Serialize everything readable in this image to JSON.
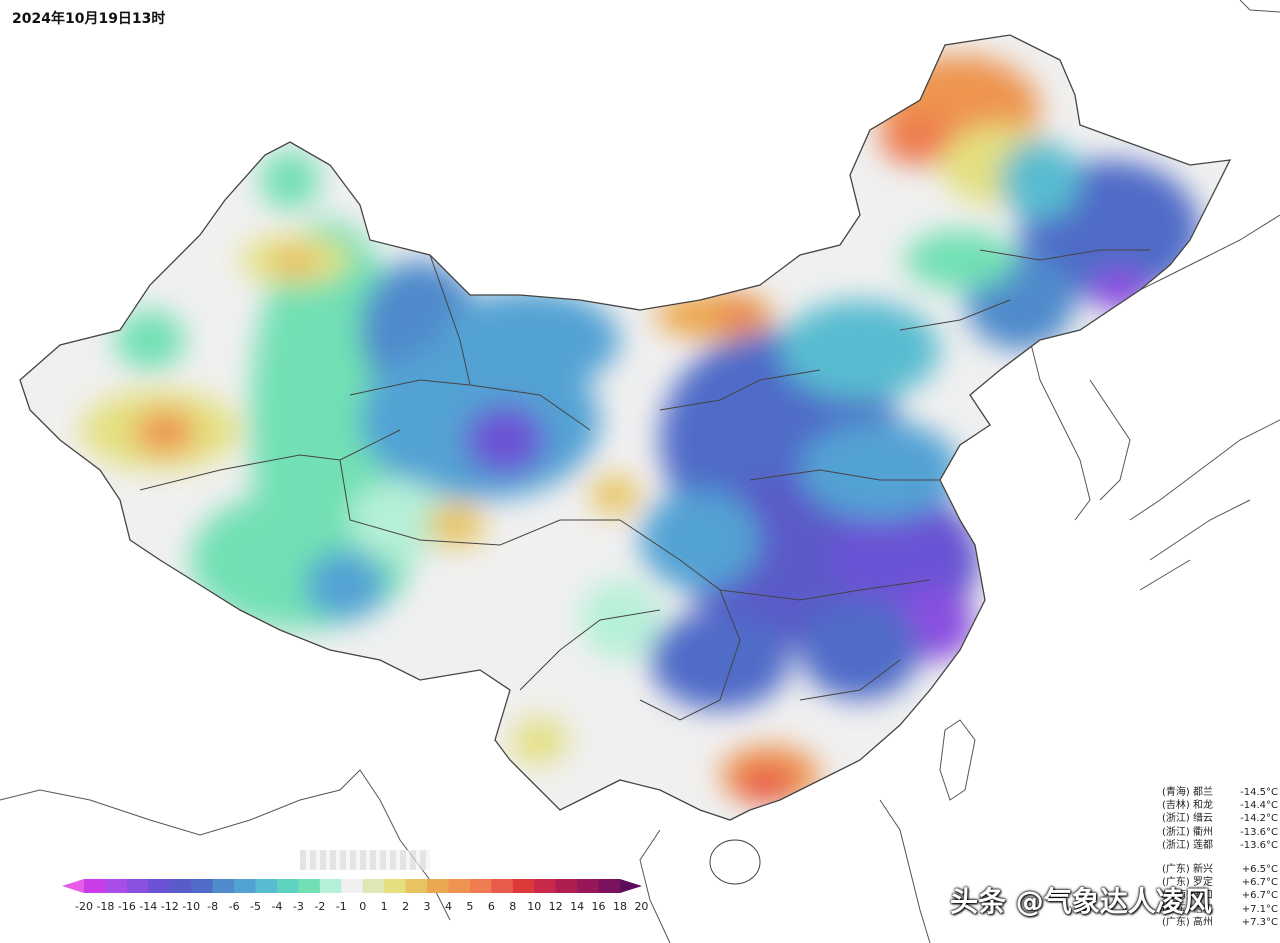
{
  "title": "2024年10月19日13时",
  "legend": {
    "labels": [
      "-20",
      "-18",
      "-16",
      "-14",
      "-12",
      "-10",
      "-8",
      "-6",
      "-5",
      "-4",
      "-3",
      "-2",
      "-1",
      "0",
      "1",
      "2",
      "3",
      "4",
      "5",
      "6",
      "8",
      "10",
      "12",
      "14",
      "16",
      "18",
      "20"
    ],
    "colors": [
      "#e85ce8",
      "#c93ce8",
      "#a94ce8",
      "#8a50e0",
      "#6a52d4",
      "#5a5ac8",
      "#4f6cc8",
      "#4f8acc",
      "#52a2d4",
      "#58bcd0",
      "#5ed2c0",
      "#72e0b4",
      "#b6f0d8",
      "#f0f0f0",
      "#dde8b4",
      "#e4e080",
      "#e8c460",
      "#eca850",
      "#ee9450",
      "#ee7c50",
      "#e85a4a",
      "#dc3a3a",
      "#c8284a",
      "#b01e50",
      "#96185a",
      "#7a1260",
      "#5c0a5a"
    ]
  },
  "stations": {
    "cold": [
      {
        "province": "(青海)",
        "name": "都兰",
        "value": "-14.5°C"
      },
      {
        "province": "(吉林)",
        "name": "和龙",
        "value": "-14.4°C"
      },
      {
        "province": "(浙江)",
        "name": "缙云",
        "value": "-14.2°C"
      },
      {
        "province": "(浙江)",
        "name": "衢州",
        "value": "-13.6°C"
      },
      {
        "province": "(浙江)",
        "name": "莲都",
        "value": "-13.6°C"
      }
    ],
    "warm": [
      {
        "province": "(广东)",
        "name": "新兴",
        "value": "+6.5°C"
      },
      {
        "province": "(广东)",
        "name": "罗定",
        "value": "+6.7°C"
      },
      {
        "province": "(海南)",
        "name": "海口",
        "value": "+6.7°C"
      },
      {
        "province": "(广东)",
        "name": "信宜",
        "value": "+7.1°C"
      },
      {
        "province": "(广东)",
        "name": "高州",
        "value": "+7.3°C"
      }
    ]
  },
  "watermark": "头条 @气象达人凌风"
}
